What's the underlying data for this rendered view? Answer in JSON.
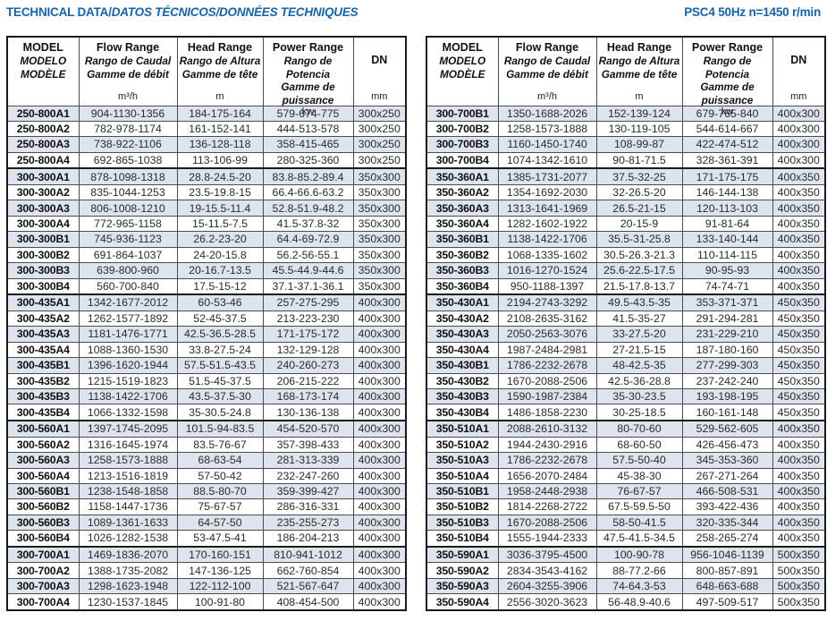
{
  "header": {
    "title_en": "TECHNICAL DATA/",
    "title_intl": "DATOS TÉCNICOS/DONNÉES TECHNIQUES",
    "spec": "PSC4 50Hz n=1450 r/min"
  },
  "colors": {
    "accent_blue": "#1563a7",
    "row_shade": "#dde4ee",
    "border_thin": "#4c4c4c",
    "border_thick": "#1a1a1a"
  },
  "columns": {
    "model": {
      "line1": "MODEL",
      "line2": "MODELO",
      "line3": "MODÈLE",
      "unit": ""
    },
    "flow": {
      "line1": "Flow Range",
      "line2": "Rango de Caudal",
      "line3": "Gamme de débit",
      "unit": "m³/h"
    },
    "head": {
      "line1": "Head Range",
      "line2": "Rango de Altura",
      "line3": "Gamme de tête",
      "unit": "m"
    },
    "power": {
      "line1": "Power Range",
      "line2": "Rango de Potencia",
      "line3": "Gamme de puissance",
      "unit": "kw"
    },
    "dn": {
      "line1": "DN",
      "unit": "mm"
    }
  },
  "tables": {
    "left": {
      "rows": [
        [
          "250-800A1",
          "904-1130-1356",
          "184-175-164",
          "579-674-775",
          "300x250"
        ],
        [
          "250-800A2",
          "782-978-1174",
          "161-152-141",
          "444-513-578",
          "300x250"
        ],
        [
          "250-800A3",
          "738-922-1106",
          "136-128-118",
          "358-415-465",
          "300x250"
        ],
        [
          "250-800A4",
          "692-865-1038",
          "113-106-99",
          "280-325-360",
          "300x250"
        ],
        [
          "300-300A1",
          "878-1098-1318",
          "28.8-24.5-20",
          "83.8-85.2-89.4",
          "350x300"
        ],
        [
          "300-300A2",
          "835-1044-1253",
          "23.5-19.8-15",
          "66.4-66.6-63.2",
          "350x300"
        ],
        [
          "300-300A3",
          "806-1008-1210",
          "19-15.5-11.4",
          "52.8-51.9-48.2",
          "350x300"
        ],
        [
          "300-300A4",
          "772-965-1158",
          "15-11.5-7.5",
          "41.5-37.8-32",
          "350x300"
        ],
        [
          "300-300B1",
          "745-936-1123",
          "26.2-23-20",
          "64.4-69-72.9",
          "350x300"
        ],
        [
          "300-300B2",
          "691-864-1037",
          "24-20-15.8",
          "56.2-56-55.1",
          "350x300"
        ],
        [
          "300-300B3",
          "639-800-960",
          "20-16.7-13.5",
          "45.5-44.9-44.6",
          "350x300"
        ],
        [
          "300-300B4",
          "560-700-840",
          "17.5-15-12",
          "37.1-37.1-36.1",
          "350x300"
        ],
        [
          "300-435A1",
          "1342-1677-2012",
          "60-53-46",
          "257-275-295",
          "400x300"
        ],
        [
          "300-435A2",
          "1262-1577-1892",
          "52-45-37.5",
          "213-223-230",
          "400x300"
        ],
        [
          "300-435A3",
          "1181-1476-1771",
          "42.5-36.5-28.5",
          "171-175-172",
          "400x300"
        ],
        [
          "300-435A4",
          "1088-1360-1530",
          "33.8-27.5-24",
          "132-129-128",
          "400x300"
        ],
        [
          "300-435B1",
          "1396-1620-1944",
          "57.5-51.5-43.5",
          "240-260-273",
          "400x300"
        ],
        [
          "300-435B2",
          "1215-1519-1823",
          "51.5-45-37.5",
          "206-215-222",
          "400x300"
        ],
        [
          "300-435B3",
          "1138-1422-1706",
          "43.5-37.5-30",
          "168-173-174",
          "400x300"
        ],
        [
          "300-435B4",
          "1066-1332-1598",
          "35-30.5-24.8",
          "130-136-138",
          "400x300"
        ],
        [
          "300-560A1",
          "1397-1745-2095",
          "101.5-94-83.5",
          "454-520-570",
          "400x300"
        ],
        [
          "300-560A2",
          "1316-1645-1974",
          "83.5-76-67",
          "357-398-433",
          "400x300"
        ],
        [
          "300-560A3",
          "1258-1573-1888",
          "68-63-54",
          "281-313-339",
          "400x300"
        ],
        [
          "300-560A4",
          "1213-1516-1819",
          "57-50-42",
          "232-247-260",
          "400x300"
        ],
        [
          "300-560B1",
          "1238-1548-1858",
          "88.5-80-70",
          "359-399-427",
          "400x300"
        ],
        [
          "300-560B2",
          "1158-1447-1736",
          "75-67-57",
          "286-316-331",
          "400x300"
        ],
        [
          "300-560B3",
          "1089-1361-1633",
          "64-57-50",
          "235-255-273",
          "400x300"
        ],
        [
          "300-560B4",
          "1026-1282-1538",
          "53-47.5-41",
          "186-204-213",
          "400x300"
        ],
        [
          "300-700A1",
          "1469-1836-2070",
          "170-160-151",
          "810-941-1012",
          "400x300"
        ],
        [
          "300-700A2",
          "1388-1735-2082",
          "147-136-125",
          "662-760-854",
          "400x300"
        ],
        [
          "300-700A3",
          "1298-1623-1948",
          "122-112-100",
          "521-567-647",
          "400x300"
        ],
        [
          "300-700A4",
          "1230-1537-1845",
          "100-91-80",
          "408-454-500",
          "400x300"
        ]
      ]
    },
    "right": {
      "rows": [
        [
          "300-700B1",
          "1350-1688-2026",
          "152-139-124",
          "679-765-840",
          "400x300"
        ],
        [
          "300-700B2",
          "1258-1573-1888",
          "130-119-105",
          "544-614-667",
          "400x300"
        ],
        [
          "300-700B3",
          "1160-1450-1740",
          "108-99-87",
          "422-474-512",
          "400x300"
        ],
        [
          "300-700B4",
          "1074-1342-1610",
          "90-81-71.5",
          "328-361-391",
          "400x300"
        ],
        [
          "350-360A1",
          "1385-1731-2077",
          "37.5-32-25",
          "171-175-175",
          "400x350"
        ],
        [
          "350-360A2",
          "1354-1692-2030",
          "32-26.5-20",
          "146-144-138",
          "400x350"
        ],
        [
          "350-360A3",
          "1313-1641-1969",
          "26.5-21-15",
          "120-113-103",
          "400x350"
        ],
        [
          "350-360A4",
          "1282-1602-1922",
          "20-15-9",
          "91-81-64",
          "400x350"
        ],
        [
          "350-360B1",
          "1138-1422-1706",
          "35.5-31-25.8",
          "133-140-144",
          "400x350"
        ],
        [
          "350-360B2",
          "1068-1335-1602",
          "30.5-26.3-21.3",
          "110-114-115",
          "400x350"
        ],
        [
          "350-360B3",
          "1016-1270-1524",
          "25.6-22.5-17.5",
          "90-95-93",
          "400x350"
        ],
        [
          "350-360B4",
          "950-1188-1397",
          "21.5-17.8-13.7",
          "74-74-71",
          "400x350"
        ],
        [
          "350-430A1",
          "2194-2743-3292",
          "49.5-43.5-35",
          "353-371-371",
          "450x350"
        ],
        [
          "350-430A2",
          "2108-2635-3162",
          "41.5-35-27",
          "291-294-281",
          "450x350"
        ],
        [
          "350-430A3",
          "2050-2563-3076",
          "33-27.5-20",
          "231-229-210",
          "450x350"
        ],
        [
          "350-430A4",
          "1987-2484-2981",
          "27-21.5-15",
          "187-180-160",
          "450x350"
        ],
        [
          "350-430B1",
          "1786-2232-2678",
          "48-42.5-35",
          "277-299-303",
          "450x350"
        ],
        [
          "350-430B2",
          "1670-2088-2506",
          "42.5-36-28.8",
          "237-242-240",
          "450x350"
        ],
        [
          "350-430B3",
          "1590-1987-2384",
          "35-30-23.5",
          "193-198-195",
          "450x350"
        ],
        [
          "350-430B4",
          "1486-1858-2230",
          "30-25-18.5",
          "160-161-148",
          "450x350"
        ],
        [
          "350-510A1",
          "2088-2610-3132",
          "80-70-60",
          "529-562-605",
          "400x350"
        ],
        [
          "350-510A2",
          "1944-2430-2916",
          "68-60-50",
          "426-456-473",
          "400x350"
        ],
        [
          "350-510A3",
          "1786-2232-2678",
          "57.5-50-40",
          "345-353-360",
          "400x350"
        ],
        [
          "350-510A4",
          "1656-2070-2484",
          "45-38-30",
          "267-271-264",
          "400x350"
        ],
        [
          "350-510B1",
          "1958-2448-2938",
          "76-67-57",
          "466-508-531",
          "400x350"
        ],
        [
          "350-510B2",
          "1814-2268-2722",
          "67.5-59.5-50",
          "393-422-436",
          "400x350"
        ],
        [
          "350-510B3",
          "1670-2088-2506",
          "58-50-41.5",
          "320-335-344",
          "400x350"
        ],
        [
          "350-510B4",
          "1555-1944-2333",
          "47.5-41.5-34.5",
          "258-265-274",
          "400x350"
        ],
        [
          "350-590A1",
          "3036-3795-4500",
          "100-90-78",
          "956-1046-1139",
          "500x350"
        ],
        [
          "350-590A2",
          "2834-3543-4162",
          "88-77.2-66",
          "800-857-891",
          "500x350"
        ],
        [
          "350-590A3",
          "2604-3255-3906",
          "74-64.3-53",
          "648-663-688",
          "500x350"
        ],
        [
          "350-590A4",
          "2556-3020-3623",
          "56-48.9-40.6",
          "497-509-517",
          "500x350"
        ]
      ]
    }
  }
}
